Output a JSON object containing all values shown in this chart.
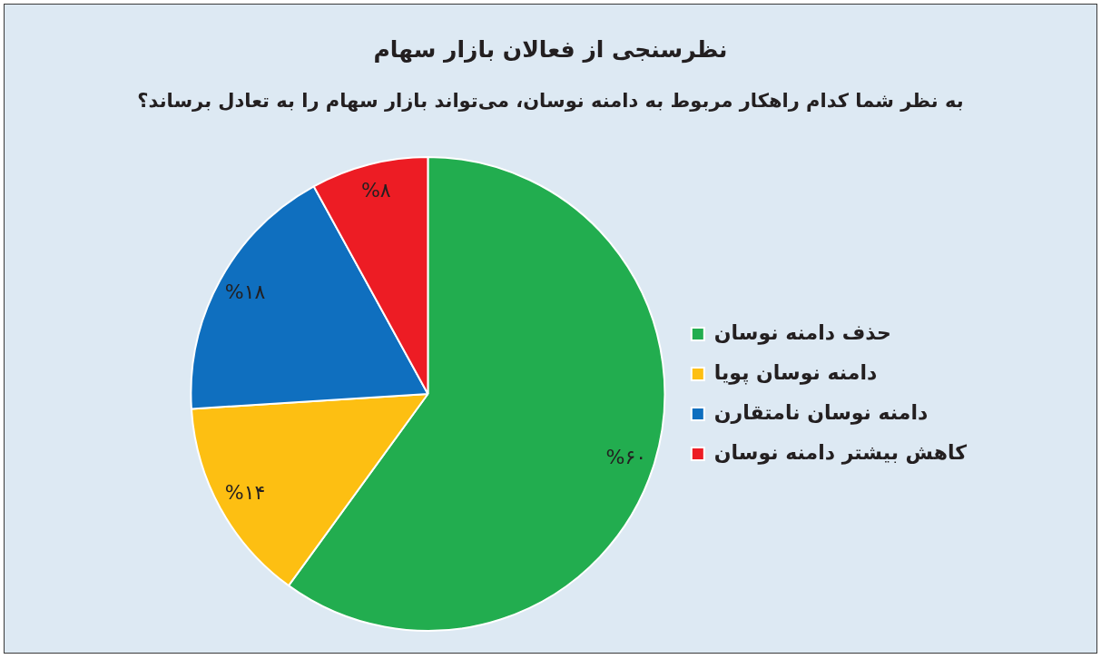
{
  "chart_data": {
    "type": "pie",
    "title": "نظرسنجی از فعالان بازار سهام",
    "subtitle": "به نظر شما کدام راهکار مربوط به دامنه نوسان، می‌تواند بازار سهام را به تعادل برساند؟",
    "categories": [
      "حذف دامنه نوسان",
      "دامنه نوسان پویا",
      "دامنه نوسان نامتقارن",
      "کاهش بیشتر دامنه نوسان"
    ],
    "values": [
      60,
      14,
      18,
      8
    ],
    "colors": [
      "#22ad4f",
      "#fdbf12",
      "#0f6fbf",
      "#ed1c24"
    ],
    "value_labels": [
      "%۶۰",
      "%۱۴",
      "%۱۸",
      "%۸"
    ],
    "legend": "right"
  }
}
